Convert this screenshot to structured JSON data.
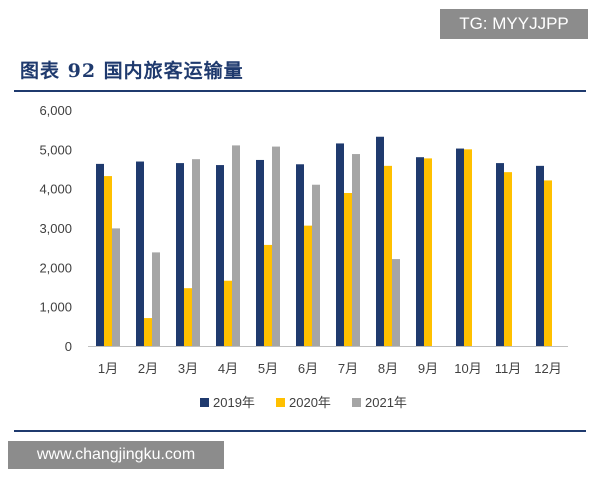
{
  "watermark_top": "TG: MYYJJPP",
  "watermark_bottom": "www.changjingku.com",
  "colors": {
    "title": "#1f3a6e",
    "series_2019": "#1f3a6e",
    "series_2020": "#ffc000",
    "series_2021": "#a5a5a5",
    "watermark_bg": "#8c8c8c"
  },
  "chart_data": {
    "type": "bar",
    "title": "图表 92 国内旅客运输量",
    "categories": [
      "1月",
      "2月",
      "3月",
      "4月",
      "5月",
      "6月",
      "7月",
      "8月",
      "9月",
      "10月",
      "11月",
      "12月"
    ],
    "series": [
      {
        "name": "2019年",
        "values": [
          4630,
          4690,
          4650,
          4600,
          4730,
          4620,
          5150,
          5320,
          4800,
          5020,
          4650,
          4580
        ]
      },
      {
        "name": "2020年",
        "values": [
          4320,
          710,
          1470,
          1660,
          2570,
          3060,
          3890,
          4580,
          4770,
          5000,
          4420,
          4210
        ]
      },
      {
        "name": "2021年",
        "values": [
          2990,
          2380,
          4750,
          5100,
          5070,
          4100,
          4880,
          2210,
          null,
          null,
          null,
          null
        ]
      }
    ],
    "ylim": [
      0,
      6000
    ],
    "yticks": [
      0,
      1000,
      2000,
      3000,
      4000,
      5000,
      6000
    ],
    "ytick_labels": [
      "0",
      "1,000",
      "2,000",
      "3,000",
      "4,000",
      "5,000",
      "6,000"
    ],
    "xlabel": "",
    "ylabel": "",
    "grid": false,
    "legend": "bottom"
  }
}
